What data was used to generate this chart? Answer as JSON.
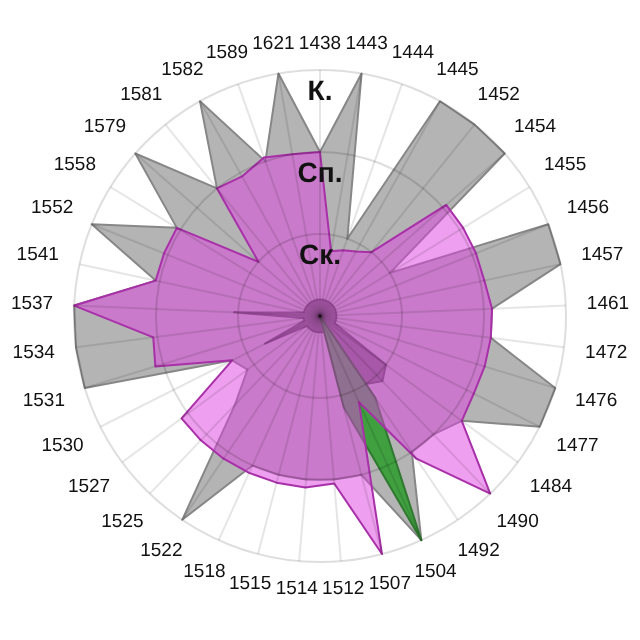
{
  "chart_data": {
    "type": "radar",
    "categories": [
      "1438",
      "1443",
      "1444",
      "1445",
      "1452",
      "1454",
      "1455",
      "1456",
      "1457",
      "1461",
      "1472",
      "1476",
      "1477",
      "1484",
      "1490",
      "1492",
      "1504",
      "1507",
      "1512",
      "1514",
      "1515",
      "1518",
      "1522",
      "1525",
      "1527",
      "1530",
      "1531",
      "1534",
      "1537",
      "1541",
      "1552",
      "1558",
      "1579",
      "1581",
      "1582",
      "1589",
      "1621"
    ],
    "series": [
      {
        "color": "#b4b4b4",
        "values": [
          2.0,
          3.0,
          1.0,
          3.0,
          3.0,
          3.0,
          1.0,
          3.0,
          3.0,
          2.1,
          2.1,
          3.0,
          3.0,
          2.15,
          2.0,
          2.0,
          3.0,
          2.0,
          2.0,
          2.0,
          2.0,
          2.0,
          3.0,
          1.5,
          1.1,
          1.2,
          3.0,
          3.0,
          3.0,
          2.05,
          3.0,
          2.05,
          3.0,
          2.0,
          3.0,
          2.0,
          3.0
        ]
      },
      {
        "color": "#707070",
        "values": [
          0.2,
          0.2,
          0.2,
          0.2,
          0.2,
          0.2,
          0.2,
          0.2,
          0.2,
          0.2,
          0.2,
          0.2,
          0.2,
          1.0,
          1.1,
          1.0,
          1.15,
          0.2,
          0.2,
          0.2,
          0.2,
          0.2,
          0.2,
          0.2,
          0.2,
          0.75,
          0.2,
          0.2,
          1.05,
          0.2,
          0.2,
          0.2,
          0.2,
          0.2,
          0.2,
          0.2,
          0.2
        ]
      },
      {
        "color": "#40a040",
        "values": [
          0,
          0,
          0,
          0,
          0,
          0,
          0,
          0,
          0,
          0,
          0,
          0,
          0,
          0,
          0,
          1.2,
          3.0,
          1.15,
          0,
          0,
          0,
          0,
          0,
          0,
          0,
          0,
          0,
          0,
          0,
          0,
          0,
          0,
          0,
          0,
          0,
          0,
          0
        ]
      },
      {
        "color": "#e040e0",
        "values": [
          2.0,
          0.8,
          0.85,
          0.9,
          1.0,
          2.05,
          2.05,
          2.05,
          2.05,
          2.1,
          2.1,
          2.1,
          2.1,
          2.15,
          3.0,
          2.1,
          1.15,
          3.0,
          2.05,
          2.1,
          2.1,
          2.1,
          2.1,
          2.1,
          2.1,
          1.2,
          2.1,
          2.05,
          3.0,
          2.05,
          2.05,
          2.05,
          1.0,
          2.0,
          1.95,
          2.05,
          2.0
        ]
      }
    ],
    "ylim": [
      0,
      3
    ],
    "yticks": [
      {
        "value": 1,
        "label": "Ск."
      },
      {
        "value": 2,
        "label": "Сп."
      },
      {
        "value": 3,
        "label": "К."
      }
    ],
    "grid": true
  }
}
